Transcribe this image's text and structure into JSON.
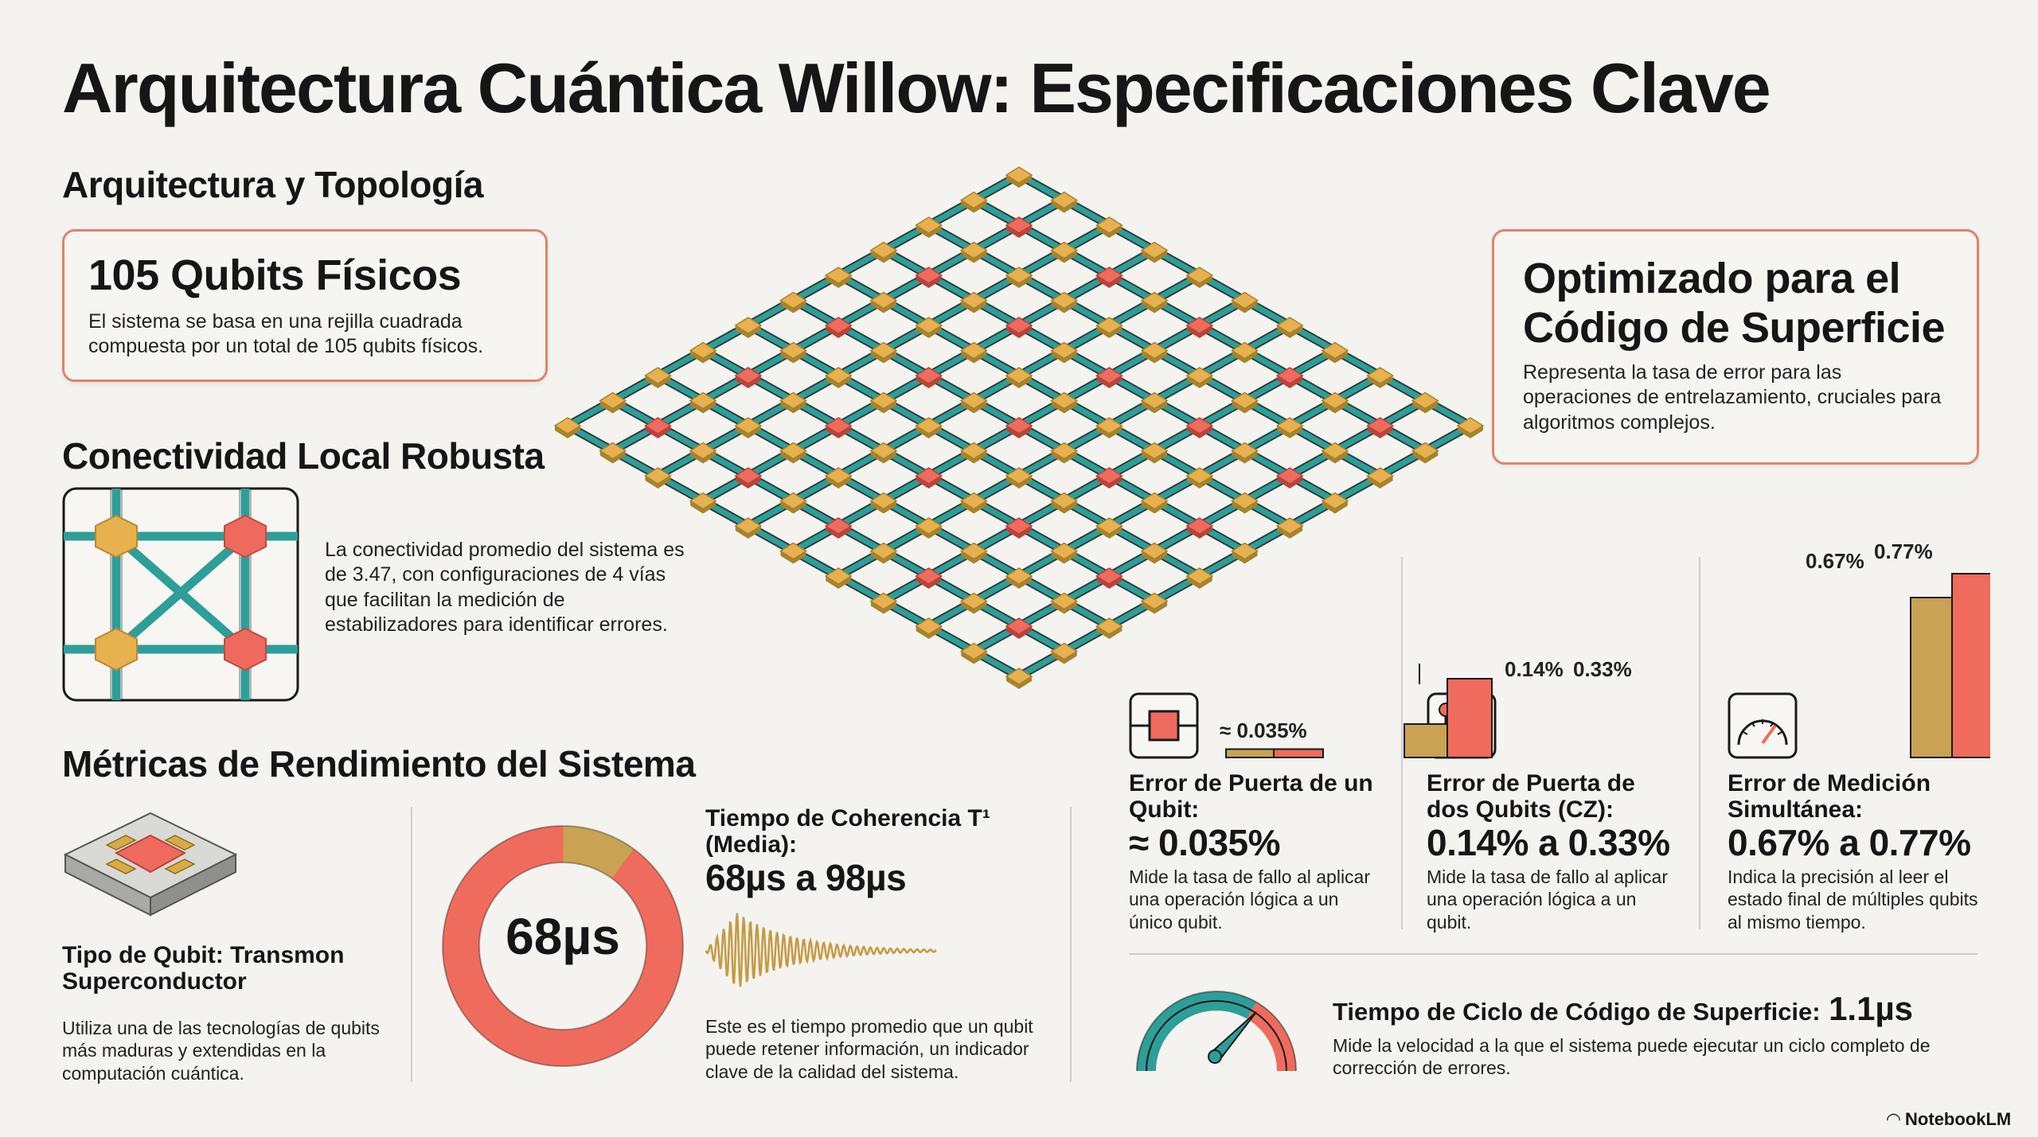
{
  "header": {
    "title": "Arquitectura Cuántica Willow: Especificaciones Clave"
  },
  "architecture": {
    "heading": "Arquitectura y Topología",
    "qubits_card": {
      "title": "105 Qubits Físicos",
      "body": "El sistema se basa en una rejilla cuadrada compuesta por un total de 105 qubits físicos."
    },
    "surface_card": {
      "title": "Optimizado para el Código de Superficie",
      "body": "Representa la tasa de error para las operaciones de entrelazamiento, cruciales para algoritmos complejos."
    },
    "connectivity": {
      "heading": "Conectividad Local Robusta",
      "body": "La conectividad promedio del sistema es de 3.47, con configuraciones de 4 vías que facilitan la medición de estabilizadores para identificar errores."
    }
  },
  "metrics": {
    "heading": "Métricas de Rendimiento del Sistema",
    "qubit_type": {
      "label": "Tipo de Qubit: Transmon Superconductor",
      "body": "Utiliza una de las tecnologías de qubits más maduras y extendidas en la computación cuántica."
    },
    "coherence": {
      "label": "Tiempo de Coherencia T¹ (Media):",
      "value": "68µs a 98µs",
      "donut_value": "68µs",
      "donut_fraction": 0.9,
      "body": "Este es el tiempo promedio que un qubit puede retener información, un indicador clave de la calidad del sistema."
    },
    "single_gate": {
      "label": "Error de Puerta de un Qubit:",
      "value": "≈ 0.035%",
      "bar_label": "≈ 0.035%",
      "body": "Mide la tasa de fallo al aplicar una operación lógica a un único qubit."
    },
    "two_gate": {
      "label": "Error de Puerta de dos Qubits (CZ):",
      "value": "0.14% a 0.33%",
      "bar_labels": [
        "0.14%",
        "0.33%"
      ],
      "body": "Mide la tasa de fallo al aplicar una operación lógica a un qubit."
    },
    "measurement": {
      "label": "Error de Medición Simultánea:",
      "value": "0.67% a 0.77%",
      "bar_labels": [
        "0.67%",
        "0.77%"
      ],
      "body": "Indica la precisión al leer el estado final de múltiples qubits al mismo tiempo."
    },
    "cycle": {
      "label": "Tiempo de Ciclo de Código de Superficie:",
      "value": "1.1µs",
      "body": "Mide la velocidad a la que el sistema puede ejecutar un ciclo completo de corrección de errores."
    }
  },
  "chart_data": {
    "type": "bar",
    "title": "",
    "categories": [
      "Error de Puerta de un Qubit",
      "Error de Puerta de dos Qubits (CZ)",
      "Error de Medición Simultánea"
    ],
    "series": [
      {
        "values": [
          0.035,
          0.14,
          0.67
        ]
      },
      {
        "values": [
          0.035,
          0.33,
          0.77
        ]
      }
    ],
    "ylim": [
      0,
      0.8
    ],
    "grid": false
  },
  "colors": {
    "teal": "#2e9e98",
    "red": "#ef6b5d",
    "gold": "#c9a253",
    "border": "#e0826e"
  },
  "footer": {
    "brand": "NotebookLM"
  }
}
